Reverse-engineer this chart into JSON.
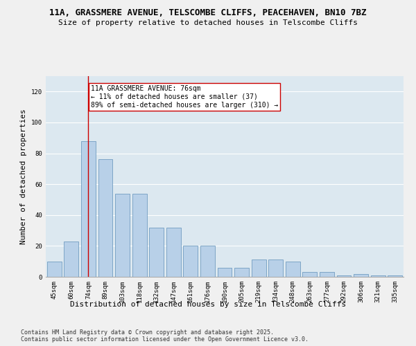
{
  "title_line1": "11A, GRASSMERE AVENUE, TELSCOMBE CLIFFS, PEACEHAVEN, BN10 7BZ",
  "title_line2": "Size of property relative to detached houses in Telscombe Cliffs",
  "xlabel": "Distribution of detached houses by size in Telscombe Cliffs",
  "ylabel": "Number of detached properties",
  "categories": [
    "45sqm",
    "60sqm",
    "74sqm",
    "89sqm",
    "103sqm",
    "118sqm",
    "132sqm",
    "147sqm",
    "161sqm",
    "176sqm",
    "190sqm",
    "205sqm",
    "219sqm",
    "234sqm",
    "248sqm",
    "263sqm",
    "277sqm",
    "292sqm",
    "306sqm",
    "321sqm",
    "335sqm"
  ],
  "bar_values": [
    10,
    23,
    88,
    76,
    54,
    54,
    32,
    32,
    20,
    20,
    6,
    6,
    11,
    11,
    10,
    3,
    3,
    1,
    2,
    1,
    1
  ],
  "bar_color": "#b8d0e8",
  "bar_edge_color": "#6090b8",
  "vline_x_index": 2,
  "vline_color": "#cc0000",
  "annotation_text": "11A GRASSMERE AVENUE: 76sqm\n← 11% of detached houses are smaller (37)\n89% of semi-detached houses are larger (310) →",
  "annotation_box_facecolor": "#ffffff",
  "annotation_box_edgecolor": "#cc0000",
  "ylim_max": 130,
  "yticks": [
    0,
    20,
    40,
    60,
    80,
    100,
    120
  ],
  "plot_bg_color": "#dce8f0",
  "fig_bg_color": "#f0f0f0",
  "title_fontsize": 9,
  "subtitle_fontsize": 8,
  "axis_label_fontsize": 8,
  "tick_fontsize": 6.5,
  "annotation_fontsize": 7,
  "footer_fontsize": 6,
  "footer_line1": "Contains HM Land Registry data © Crown copyright and database right 2025.",
  "footer_line2": "Contains public sector information licensed under the Open Government Licence v3.0."
}
